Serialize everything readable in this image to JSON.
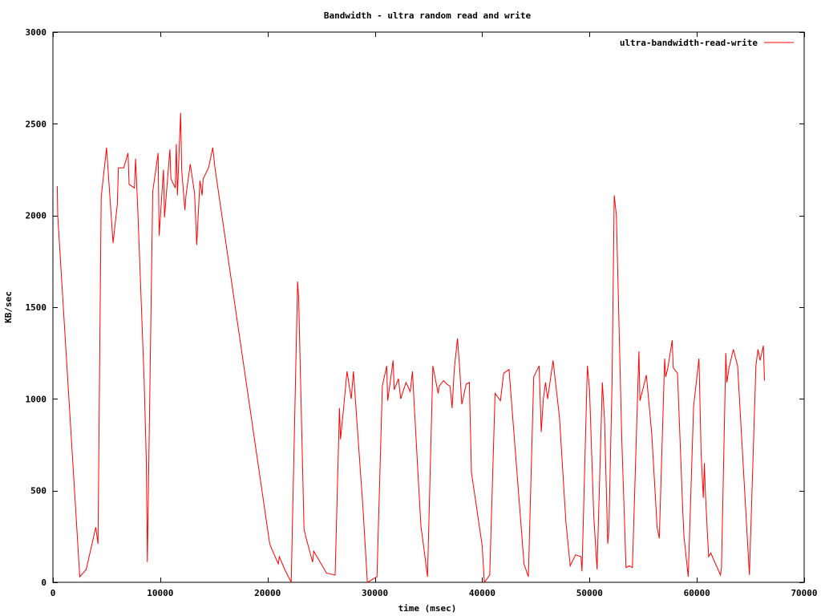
{
  "chart_data": {
    "type": "line",
    "title": "Bandwidth - ultra random read and write",
    "xlabel": "time (msec)",
    "ylabel": "KB/sec",
    "xlim": [
      0,
      70000
    ],
    "ylim": [
      0,
      3000
    ],
    "x_ticks": [
      0,
      10000,
      20000,
      30000,
      40000,
      50000,
      60000,
      70000
    ],
    "y_ticks": [
      0,
      500,
      1000,
      1500,
      2000,
      2500,
      3000
    ],
    "grid": false,
    "legend_position": "top-right",
    "series": [
      {
        "name": "ultra-bandwidth-read-write",
        "color": "#ff0000",
        "points": [
          [
            400,
            2160
          ],
          [
            450,
            2000
          ],
          [
            2500,
            30
          ],
          [
            3100,
            70
          ],
          [
            4000,
            300
          ],
          [
            4200,
            210
          ],
          [
            4500,
            2100
          ],
          [
            5000,
            2370
          ],
          [
            5600,
            1850
          ],
          [
            6000,
            2060
          ],
          [
            6100,
            2260
          ],
          [
            6600,
            2260
          ],
          [
            7000,
            2340
          ],
          [
            7100,
            2170
          ],
          [
            7600,
            2150
          ],
          [
            7700,
            2310
          ],
          [
            7900,
            2050
          ],
          [
            8500,
            1100
          ],
          [
            8700,
            660
          ],
          [
            8800,
            110
          ],
          [
            9300,
            2130
          ],
          [
            9800,
            2340
          ],
          [
            9900,
            1890
          ],
          [
            10300,
            2250
          ],
          [
            10400,
            1990
          ],
          [
            10900,
            2360
          ],
          [
            11000,
            2200
          ],
          [
            11400,
            2150
          ],
          [
            11500,
            2390
          ],
          [
            11600,
            2110
          ],
          [
            11900,
            2560
          ],
          [
            12000,
            2250
          ],
          [
            12300,
            2030
          ],
          [
            12400,
            2110
          ],
          [
            12800,
            2280
          ],
          [
            13200,
            2120
          ],
          [
            13400,
            1840
          ],
          [
            13700,
            2190
          ],
          [
            13900,
            2110
          ],
          [
            14000,
            2200
          ],
          [
            14500,
            2260
          ],
          [
            14900,
            2370
          ],
          [
            15100,
            2260
          ],
          [
            20200,
            210
          ],
          [
            20400,
            180
          ],
          [
            21000,
            100
          ],
          [
            21100,
            140
          ],
          [
            21600,
            70
          ],
          [
            22200,
            0
          ],
          [
            22800,
            1640
          ],
          [
            22900,
            1550
          ],
          [
            23400,
            290
          ],
          [
            23600,
            240
          ],
          [
            24200,
            110
          ],
          [
            24300,
            170
          ],
          [
            25500,
            50
          ],
          [
            26300,
            40
          ],
          [
            26700,
            950
          ],
          [
            26800,
            780
          ],
          [
            27100,
            960
          ],
          [
            27400,
            1150
          ],
          [
            27800,
            1000
          ],
          [
            28000,
            1150
          ],
          [
            28900,
            400
          ],
          [
            29300,
            0
          ],
          [
            30200,
            30
          ],
          [
            30700,
            1070
          ],
          [
            31100,
            1180
          ],
          [
            31200,
            990
          ],
          [
            31700,
            1210
          ],
          [
            31800,
            1050
          ],
          [
            32200,
            1110
          ],
          [
            32400,
            1000
          ],
          [
            32900,
            1090
          ],
          [
            33300,
            1040
          ],
          [
            33500,
            1150
          ],
          [
            34100,
            500
          ],
          [
            34300,
            300
          ],
          [
            34400,
            260
          ],
          [
            34900,
            30
          ],
          [
            35400,
            1180
          ],
          [
            35900,
            1030
          ],
          [
            36000,
            1070
          ],
          [
            36400,
            1100
          ],
          [
            36700,
            1080
          ],
          [
            37000,
            1070
          ],
          [
            37200,
            950
          ],
          [
            37400,
            1160
          ],
          [
            37700,
            1330
          ],
          [
            37900,
            1170
          ],
          [
            38100,
            970
          ],
          [
            38500,
            1080
          ],
          [
            38800,
            1090
          ],
          [
            39000,
            600
          ],
          [
            40000,
            200
          ],
          [
            40200,
            0
          ],
          [
            40700,
            40
          ],
          [
            41200,
            1030
          ],
          [
            41700,
            990
          ],
          [
            42000,
            1140
          ],
          [
            42500,
            1160
          ],
          [
            43900,
            100
          ],
          [
            44300,
            30
          ],
          [
            44800,
            1120
          ],
          [
            45300,
            1180
          ],
          [
            45500,
            820
          ],
          [
            45700,
            1000
          ],
          [
            45900,
            1090
          ],
          [
            46100,
            1000
          ],
          [
            46600,
            1210
          ],
          [
            47200,
            900
          ],
          [
            47800,
            330
          ],
          [
            48200,
            90
          ],
          [
            48700,
            150
          ],
          [
            49200,
            140
          ],
          [
            49300,
            60
          ],
          [
            49800,
            1180
          ],
          [
            50000,
            1050
          ],
          [
            50400,
            360
          ],
          [
            50700,
            70
          ],
          [
            51200,
            1090
          ],
          [
            51400,
            890
          ],
          [
            51700,
            210
          ],
          [
            51800,
            280
          ],
          [
            52100,
            1090
          ],
          [
            52300,
            2110
          ],
          [
            52500,
            2000
          ],
          [
            53000,
            800
          ],
          [
            53400,
            80
          ],
          [
            53700,
            90
          ],
          [
            54000,
            80
          ],
          [
            54600,
            1260
          ],
          [
            54700,
            990
          ],
          [
            55300,
            1130
          ],
          [
            55800,
            810
          ],
          [
            56300,
            300
          ],
          [
            56500,
            240
          ],
          [
            57000,
            1220
          ],
          [
            57100,
            1120
          ],
          [
            57300,
            1170
          ],
          [
            57700,
            1320
          ],
          [
            57800,
            1170
          ],
          [
            58200,
            1140
          ],
          [
            58700,
            380
          ],
          [
            58800,
            250
          ],
          [
            59200,
            30
          ],
          [
            59700,
            960
          ],
          [
            60200,
            1220
          ],
          [
            60400,
            700
          ],
          [
            60600,
            460
          ],
          [
            60700,
            650
          ],
          [
            60800,
            480
          ],
          [
            61000,
            250
          ],
          [
            61100,
            140
          ],
          [
            61300,
            160
          ],
          [
            62200,
            40
          ],
          [
            62300,
            80
          ],
          [
            62700,
            1250
          ],
          [
            62800,
            1090
          ],
          [
            63000,
            1170
          ],
          [
            63400,
            1270
          ],
          [
            63800,
            1180
          ],
          [
            64900,
            40
          ],
          [
            65500,
            1180
          ],
          [
            65700,
            1270
          ],
          [
            65900,
            1210
          ],
          [
            66200,
            1290
          ],
          [
            66300,
            1100
          ]
        ]
      }
    ]
  }
}
